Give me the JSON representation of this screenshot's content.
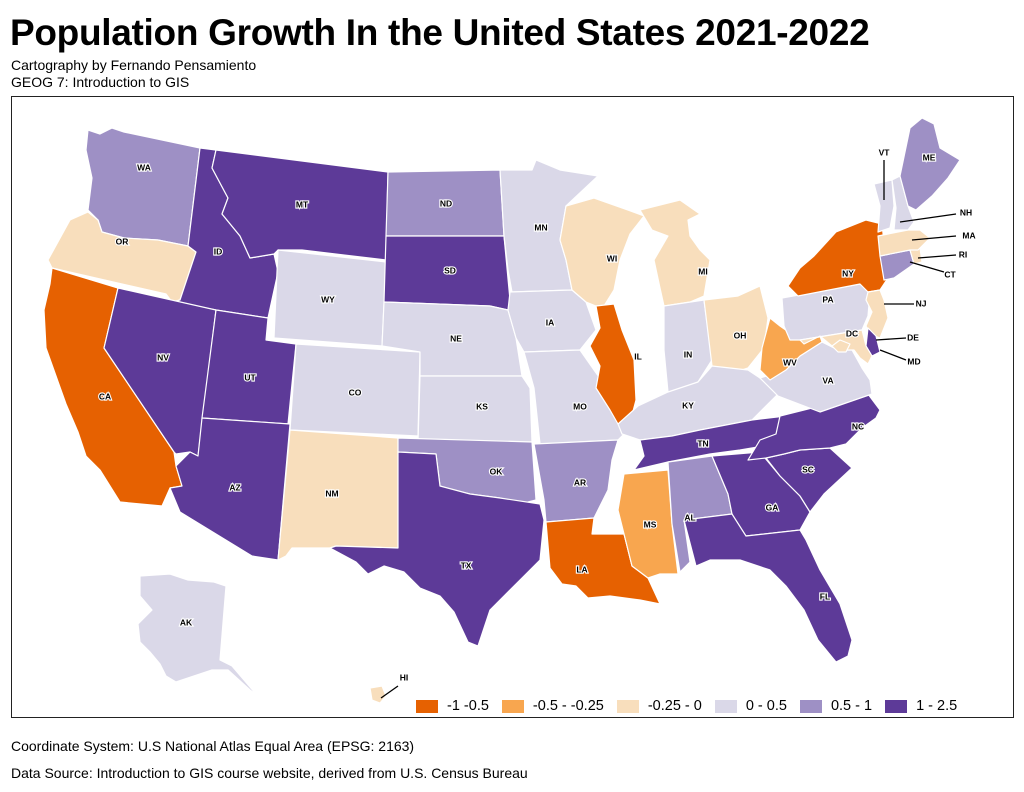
{
  "header": {
    "title": "Population Growth In the United States 2021-2022",
    "subtitle_author": "Cartography by Fernando Pensamiento",
    "subtitle_course": "GEOG 7: Introduction to GIS"
  },
  "footer": {
    "coordinate_system": "Coordinate System: U.S National Atlas Equal Area (EPSG: 2163)",
    "data_source": "Data Source: Introduction to GIS course website, derived from U.S. Census Bureau"
  },
  "legend": {
    "items": [
      {
        "id": "c1",
        "label": "-1 -0.5",
        "color": "#e66101"
      },
      {
        "id": "c2",
        "label": "-0.5 - -0.25",
        "color": "#f8a64f"
      },
      {
        "id": "c3",
        "label": "-0.25 - 0",
        "color": "#f8debc"
      },
      {
        "id": "c4",
        "label": "0 - 0.5",
        "color": "#dad8e8"
      },
      {
        "id": "c5",
        "label": "0.5 - 1",
        "color": "#9e90c5"
      },
      {
        "id": "c6",
        "label": "1 - 2.5",
        "color": "#5d3a98"
      }
    ]
  },
  "chart_data": {
    "type": "choropleth",
    "title": "Population Growth In the United States 2021-2022",
    "variable": "Population growth (%) 2021-2022",
    "classes": [
      {
        "id": "c1",
        "range": [
          -1,
          -0.5
        ],
        "label": "-1 -0.5"
      },
      {
        "id": "c2",
        "range": [
          -0.5,
          -0.25
        ],
        "label": "-0.5 - -0.25"
      },
      {
        "id": "c3",
        "range": [
          -0.25,
          0
        ],
        "label": "-0.25 - 0"
      },
      {
        "id": "c4",
        "range": [
          0,
          0.5
        ],
        "label": "0 - 0.5"
      },
      {
        "id": "c5",
        "range": [
          0.5,
          1
        ],
        "label": "0.5 - 1"
      },
      {
        "id": "c6",
        "range": [
          1,
          2.5
        ],
        "label": "1 - 2.5"
      }
    ],
    "legend_position": "bottom-right",
    "states": [
      {
        "abbr": "WA",
        "class": "c5"
      },
      {
        "abbr": "OR",
        "class": "c3"
      },
      {
        "abbr": "CA",
        "class": "c1"
      },
      {
        "abbr": "ID",
        "class": "c6"
      },
      {
        "abbr": "NV",
        "class": "c6"
      },
      {
        "abbr": "MT",
        "class": "c6"
      },
      {
        "abbr": "WY",
        "class": "c4"
      },
      {
        "abbr": "UT",
        "class": "c6"
      },
      {
        "abbr": "AZ",
        "class": "c6"
      },
      {
        "abbr": "CO",
        "class": "c4"
      },
      {
        "abbr": "NM",
        "class": "c3"
      },
      {
        "abbr": "ND",
        "class": "c5"
      },
      {
        "abbr": "SD",
        "class": "c6"
      },
      {
        "abbr": "NE",
        "class": "c4"
      },
      {
        "abbr": "KS",
        "class": "c4"
      },
      {
        "abbr": "OK",
        "class": "c5"
      },
      {
        "abbr": "TX",
        "class": "c6"
      },
      {
        "abbr": "MN",
        "class": "c4"
      },
      {
        "abbr": "IA",
        "class": "c4"
      },
      {
        "abbr": "MO",
        "class": "c4"
      },
      {
        "abbr": "AR",
        "class": "c5"
      },
      {
        "abbr": "LA",
        "class": "c1"
      },
      {
        "abbr": "WI",
        "class": "c3"
      },
      {
        "abbr": "IL",
        "class": "c1"
      },
      {
        "abbr": "MI",
        "class": "c3"
      },
      {
        "abbr": "IN",
        "class": "c4"
      },
      {
        "abbr": "OH",
        "class": "c3"
      },
      {
        "abbr": "KY",
        "class": "c4"
      },
      {
        "abbr": "TN",
        "class": "c6"
      },
      {
        "abbr": "MS",
        "class": "c2"
      },
      {
        "abbr": "AL",
        "class": "c5"
      },
      {
        "abbr": "GA",
        "class": "c6"
      },
      {
        "abbr": "FL",
        "class": "c6"
      },
      {
        "abbr": "SC",
        "class": "c6"
      },
      {
        "abbr": "NC",
        "class": "c6"
      },
      {
        "abbr": "VA",
        "class": "c4"
      },
      {
        "abbr": "WV",
        "class": "c2"
      },
      {
        "abbr": "PA",
        "class": "c4"
      },
      {
        "abbr": "NY",
        "class": "c1"
      },
      {
        "abbr": "NJ",
        "class": "c3"
      },
      {
        "abbr": "DE",
        "class": "c6"
      },
      {
        "abbr": "MD",
        "class": "c3"
      },
      {
        "abbr": "DC",
        "class": "c3"
      },
      {
        "abbr": "CT",
        "class": "c5"
      },
      {
        "abbr": "RI",
        "class": "c3"
      },
      {
        "abbr": "MA",
        "class": "c3"
      },
      {
        "abbr": "VT",
        "class": "c4"
      },
      {
        "abbr": "NH",
        "class": "c4"
      },
      {
        "abbr": "ME",
        "class": "c5"
      },
      {
        "abbr": "AK",
        "class": "c4"
      },
      {
        "abbr": "HI",
        "class": "c3"
      }
    ]
  }
}
